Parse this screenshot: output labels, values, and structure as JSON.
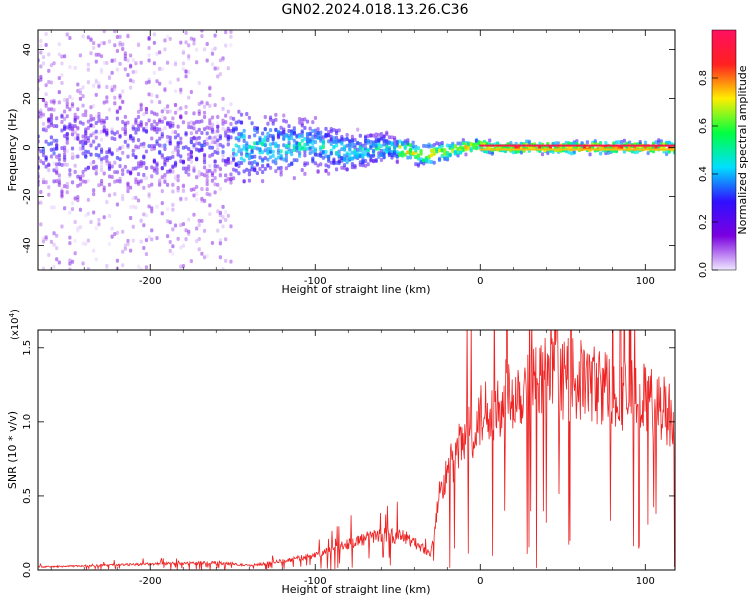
{
  "title": "GN02.2024.018.13.26.C36",
  "chart_data": [
    {
      "type": "heatmap",
      "xlabel": "Height of straight line (km)",
      "ylabel": "Frequency (Hz)",
      "xlim": [
        -268,
        118
      ],
      "ylim": [
        -50,
        48
      ],
      "xticks": [
        -200,
        -100,
        0,
        100
      ],
      "yticks": [
        -40,
        -20,
        0,
        20,
        40
      ],
      "xtick_labels": [
        "-200",
        "-100",
        "0",
        "100"
      ],
      "ytick_labels": [
        "-40",
        "-20",
        "0",
        "20",
        "40"
      ],
      "colorbar": {
        "label": "Normalized spectral amplitude",
        "range": [
          0,
          1
        ],
        "ticks": [
          0.0,
          0.2,
          0.4,
          0.6,
          0.8
        ],
        "tick_labels": [
          "0.0",
          "0.2",
          "0.4",
          "0.6",
          "0.8"
        ],
        "colormap": [
          "#f0e8ff",
          "#7a00e0",
          "#3010ff",
          "#00e0ff",
          "#00ff40",
          "#ffee00",
          "#ff2020",
          "#ff1060"
        ]
      },
      "band": {
        "noise_region_x": [
          -268,
          -150
        ],
        "noise_amplitude": 0.15,
        "center_offset_samples": [
          {
            "x": -150,
            "y": 0
          },
          {
            "x": -100,
            "y": 1
          },
          {
            "x": -80,
            "y": -2
          },
          {
            "x": -60,
            "y": 0
          },
          {
            "x": -45,
            "y": -1
          },
          {
            "x": -35,
            "y": -3
          },
          {
            "x": -25,
            "y": -2
          },
          {
            "x": -10,
            "y": 0
          },
          {
            "x": 0,
            "y": 1
          },
          {
            "x": 5,
            "y": 0
          },
          {
            "x": 118,
            "y": 0
          }
        ],
        "bandwidth_samples": [
          {
            "x": -268,
            "y": 26
          },
          {
            "x": -150,
            "y": 18
          },
          {
            "x": -100,
            "y": 12
          },
          {
            "x": -50,
            "y": 6
          },
          {
            "x": 0,
            "y": 3
          },
          {
            "x": 118,
            "y": 3
          }
        ]
      }
    },
    {
      "type": "line",
      "xlabel": "Height of straight line (km)",
      "ylabel": "SNR (10 * v/v)",
      "ymultiplier": "(x10",
      "ymultiplier_exp": "4",
      "ymultiplier_close": ")",
      "xlim": [
        -268,
        118
      ],
      "ylim": [
        0,
        1.62
      ],
      "xticks": [
        -200,
        -100,
        0,
        100
      ],
      "yticks": [
        0.0,
        0.5,
        1.0,
        1.5
      ],
      "xtick_labels": [
        "-200",
        "-100",
        "0",
        "100"
      ],
      "ytick_labels": [
        "0.0",
        "0.5",
        "1.0",
        "1.5"
      ],
      "color": "#ee2222",
      "envelope": [
        {
          "x": -268,
          "y": 0.02
        },
        {
          "x": -200,
          "y": 0.04
        },
        {
          "x": -160,
          "y": 0.05
        },
        {
          "x": -140,
          "y": 0.03
        },
        {
          "x": -120,
          "y": 0.06
        },
        {
          "x": -100,
          "y": 0.1
        },
        {
          "x": -80,
          "y": 0.18
        },
        {
          "x": -60,
          "y": 0.24
        },
        {
          "x": -45,
          "y": 0.22
        },
        {
          "x": -35,
          "y": 0.15
        },
        {
          "x": -30,
          "y": 0.1
        },
        {
          "x": -25,
          "y": 0.5
        },
        {
          "x": -15,
          "y": 0.78
        },
        {
          "x": -5,
          "y": 0.95
        },
        {
          "x": 5,
          "y": 1.1
        },
        {
          "x": 20,
          "y": 1.2
        },
        {
          "x": 40,
          "y": 1.3
        },
        {
          "x": 60,
          "y": 1.28
        },
        {
          "x": 80,
          "y": 1.22
        },
        {
          "x": 100,
          "y": 1.15
        },
        {
          "x": 118,
          "y": 1.05
        }
      ],
      "noise_fraction": 0.22
    }
  ]
}
